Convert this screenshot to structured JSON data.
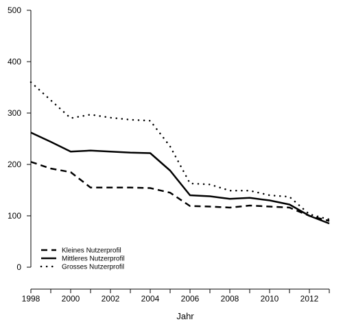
{
  "chart_data": {
    "type": "line",
    "title": "",
    "xlabel": "Jahr",
    "ylabel": "",
    "xlim": [
      1998,
      2013
    ],
    "ylim": [
      0,
      500
    ],
    "x_ticks": [
      1998,
      2000,
      2002,
      2004,
      2006,
      2008,
      2010,
      2012
    ],
    "y_ticks": [
      0,
      100,
      200,
      300,
      400,
      500
    ],
    "grid": false,
    "legend_position": "bottom-left",
    "x": [
      1998,
      1999,
      2000,
      2001,
      2002,
      2003,
      2004,
      2005,
      2006,
      2007,
      2008,
      2009,
      2010,
      2011,
      2012,
      2013
    ],
    "series": [
      {
        "name": "Kleines Nutzerprofil",
        "line_style": "dashed",
        "values": [
          205,
          192,
          185,
          155,
          155,
          155,
          154,
          145,
          119,
          118,
          116,
          120,
          118,
          116,
          100,
          90
        ]
      },
      {
        "name": "Mittleres Nutzerprofil",
        "line_style": "solid",
        "values": [
          262,
          244,
          225,
          227,
          225,
          223,
          222,
          188,
          140,
          138,
          133,
          135,
          130,
          122,
          100,
          85
        ]
      },
      {
        "name": "Grosses Nutzerprofil",
        "line_style": "dotted",
        "values": [
          360,
          325,
          290,
          297,
          291,
          287,
          285,
          235,
          163,
          161,
          149,
          149,
          140,
          137,
          103,
          93
        ]
      }
    ]
  }
}
